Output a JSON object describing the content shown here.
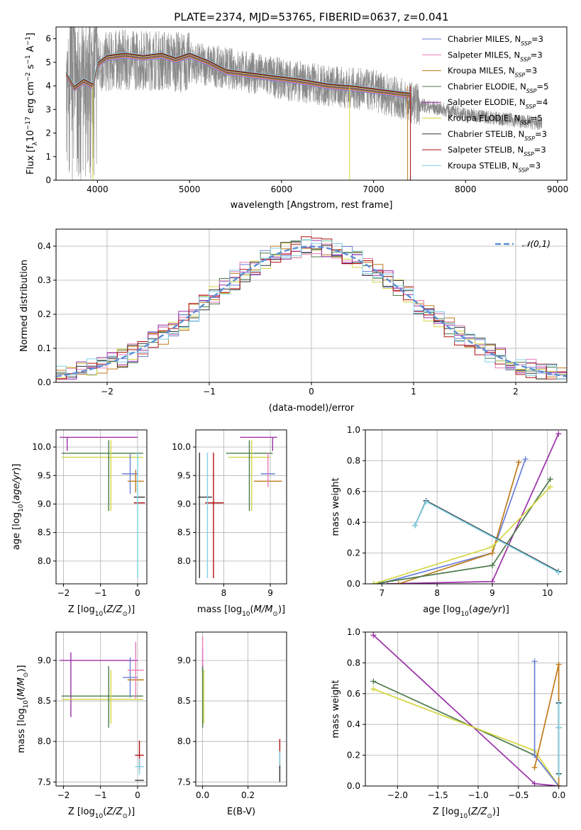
{
  "figure": {
    "title": "PLATE=2374, MJD=53765, FIBERID=0637, z=0.041"
  },
  "models": [
    {
      "name": "Chabrier MILES, N_SSP=3",
      "label_main": "Chabrier MILES, N",
      "label_sub": "SSP",
      "label_end": "=3",
      "color": "#6a7fd6"
    },
    {
      "name": "Salpeter MILES, N_SSP=3",
      "label_main": "Salpeter MILES, N",
      "label_sub": "SSP",
      "label_end": "=3",
      "color": "#e87bb8"
    },
    {
      "name": "Kroupa MILES, N_SSP=3",
      "label_main": "Kroupa MILES, N",
      "label_sub": "SSP",
      "label_end": "=3",
      "color": "#c07a1a"
    },
    {
      "name": "Chabrier ELODIE, N_SSP=5",
      "label_main": "Chabrier ELODIE, N",
      "label_sub": "SSP",
      "label_end": "=5",
      "color": "#4c7a4c"
    },
    {
      "name": "Salpeter ELODIE, N_SSP=4",
      "label_main": "Salpeter ELODIE, N",
      "label_sub": "SSP",
      "label_end": "=4",
      "color": "#9b30a8"
    },
    {
      "name": "Kroupa ELODIE, N_SSP=5",
      "label_main": "Kroupa ELODIE, N",
      "label_sub": "SSP",
      "label_end": "=5",
      "color": "#d4d640"
    },
    {
      "name": "Chabrier STELIB, N_SSP=3",
      "label_main": "Chabrier STELIB, N",
      "label_sub": "SSP",
      "label_end": "=3",
      "color": "#333333"
    },
    {
      "name": "Salpeter STELIB, N_SSP=3",
      "label_main": "Salpeter STELIB, N",
      "label_sub": "SSP",
      "label_end": "=3",
      "color": "#b01010"
    },
    {
      "name": "Kroupa STELIB, N_SSP=3",
      "label_main": "Kroupa STELIB, N",
      "label_sub": "SSP",
      "label_end": "=3",
      "color": "#7ed0e6"
    }
  ],
  "chart_data": [
    {
      "id": "spectrum",
      "type": "line",
      "xlabel": "wavelength [Angstrom, rest frame]",
      "ylabel": "Flux [f_λ 10^-17 erg cm^-2 s^-1 A^-1]",
      "xlim": [
        3550,
        9100
      ],
      "ylim": [
        0,
        6.5
      ],
      "xticks": [
        4000,
        5000,
        6000,
        7000,
        8000,
        9000
      ],
      "yticks": [
        0,
        1,
        2,
        3,
        4,
        5,
        6
      ],
      "grid": false,
      "legend": "top-right",
      "data_series_color": "#888888",
      "data_x_range": [
        3660,
        8830
      ],
      "data_trend": {
        "x": [
          3660,
          3800,
          4000,
          4200,
          4600,
          5000,
          5500,
          6000,
          6500,
          7000,
          7500,
          8000,
          8400,
          8830
        ],
        "y": [
          3.8,
          4.2,
          4.9,
          5.1,
          5.1,
          5.0,
          4.7,
          4.3,
          4.0,
          3.8,
          3.2,
          2.8,
          2.6,
          2.4
        ]
      },
      "model_trend": {
        "x": [
          3660,
          3750,
          3850,
          3950,
          4000,
          4100,
          4300,
          4500,
          4700,
          4850,
          5000,
          5200,
          5400,
          5600,
          5800,
          6000,
          6200,
          6500,
          6800,
          7000,
          7200,
          7400
        ],
        "y": [
          4.5,
          3.9,
          4.2,
          4.0,
          4.9,
          5.2,
          5.3,
          5.2,
          5.3,
          5.1,
          5.3,
          5.0,
          4.6,
          4.5,
          4.4,
          4.3,
          4.2,
          4.0,
          3.9,
          3.8,
          3.7,
          3.6
        ]
      },
      "model_cutoffs": [
        {
          "model": 5,
          "x": 3950
        },
        {
          "model": 5,
          "x": 6740
        },
        {
          "model": 2,
          "x": 7370
        },
        {
          "model": 7,
          "x": 7400
        }
      ]
    },
    {
      "id": "residual-histogram",
      "type": "bar",
      "xlabel": "(data-model)/error",
      "ylabel": "Normed distribution",
      "xlim": [
        -2.5,
        2.5
      ],
      "ylim": [
        0,
        0.45
      ],
      "xticks": [
        -2,
        -1,
        0,
        1,
        2
      ],
      "yticks": [
        0.0,
        0.1,
        0.2,
        0.3,
        0.4
      ],
      "grid": true,
      "bin_width": 0.1,
      "reference": {
        "name": "𝒩(0,1)",
        "color": "#5b8ed6",
        "mean": 0,
        "sigma": 1
      },
      "legend": "top-right"
    },
    {
      "id": "age-vs-Z",
      "type": "scatter",
      "xlabel": "Z [log10(Z/Z⊙)]",
      "ylabel": "age [log10(age/yr)]",
      "xlim": [
        -2.2,
        0.25
      ],
      "ylim": [
        7.6,
        10.3
      ],
      "xticks": [
        -2,
        -1,
        0
      ],
      "yticks": [
        8.0,
        8.5,
        9.0,
        9.5,
        10.0
      ],
      "grid": true,
      "points": [
        {
          "model": 4,
          "x": -1.05,
          "xerr": 1.05,
          "y": 10.17,
          "yerr": 0.0
        },
        {
          "model": 4,
          "x": -1.9,
          "xerr": 0,
          "y": 10.05,
          "yerr": 0.12
        },
        {
          "model": 3,
          "x": -0.95,
          "xerr": 1.1,
          "y": 9.89,
          "yerr": 0.0
        },
        {
          "model": 5,
          "x": -0.95,
          "xerr": 1.1,
          "y": 9.82,
          "yerr": 0.0
        },
        {
          "model": 3,
          "x": -0.78,
          "xerr": 0,
          "y": 9.5,
          "yerr": 0.62
        },
        {
          "model": 5,
          "x": -0.72,
          "xerr": 0,
          "y": 9.5,
          "yerr": 0.62
        },
        {
          "model": 0,
          "x": -0.2,
          "xerr": 0.22,
          "y": 9.53,
          "yerr": 0.35
        },
        {
          "model": 2,
          "x": -0.05,
          "xerr": 0.22,
          "y": 9.4,
          "yerr": 0.2
        },
        {
          "model": 6,
          "x": 0.05,
          "xerr": 0.15,
          "y": 9.12,
          "yerr": 0.0
        },
        {
          "model": 7,
          "x": 0.05,
          "xerr": 0.15,
          "y": 9.02,
          "yerr": 0.0
        },
        {
          "model": 8,
          "x": 0.0,
          "xerr": 0.0,
          "y": 8.8,
          "yerr": 1.1
        }
      ]
    },
    {
      "id": "age-vs-mass",
      "type": "scatter",
      "xlabel": "mass [log10(M/M⊙)]",
      "ylabel": "",
      "xlim": [
        7.4,
        9.35
      ],
      "ylim": [
        7.6,
        10.3
      ],
      "xticks": [
        8,
        9
      ],
      "yticks": [
        8.0,
        8.5,
        9.0,
        9.5,
        10.0
      ],
      "grid": true,
      "points": [
        {
          "model": 4,
          "x": 8.75,
          "xerr": 0.4,
          "y": 10.17,
          "yerr": 0.0
        },
        {
          "model": 4,
          "x": 9.05,
          "xerr": 0,
          "y": 10.05,
          "yerr": 0.12
        },
        {
          "model": 3,
          "x": 8.55,
          "xerr": 0.5,
          "y": 9.89,
          "yerr": 0.0
        },
        {
          "model": 5,
          "x": 8.55,
          "xerr": 0.45,
          "y": 9.82,
          "yerr": 0.0
        },
        {
          "model": 3,
          "x": 8.55,
          "xerr": 0,
          "y": 9.5,
          "yerr": 0.62
        },
        {
          "model": 5,
          "x": 8.6,
          "xerr": 0,
          "y": 9.5,
          "yerr": 0.62
        },
        {
          "model": 0,
          "x": 8.95,
          "xerr": 0.15,
          "y": 9.53,
          "yerr": 0.0
        },
        {
          "model": 2,
          "x": 8.95,
          "xerr": 0.3,
          "y": 9.4,
          "yerr": 0.0
        },
        {
          "model": 1,
          "x": 8.95,
          "xerr": 0,
          "y": 9.6,
          "yerr": 0.3
        },
        {
          "model": 6,
          "x": 7.6,
          "xerr": 0.15,
          "y": 9.12,
          "yerr": 0.0
        },
        {
          "model": 6,
          "x": 7.48,
          "xerr": 0,
          "y": 8.8,
          "yerr": 1.1
        },
        {
          "model": 7,
          "x": 7.8,
          "xerr": 0.2,
          "y": 9.02,
          "yerr": 0.0
        },
        {
          "model": 7,
          "x": 7.78,
          "xerr": 0,
          "y": 8.8,
          "yerr": 1.1
        },
        {
          "model": 8,
          "x": 7.65,
          "xerr": 0,
          "y": 8.8,
          "yerr": 1.1
        }
      ]
    },
    {
      "id": "massweight-vs-age",
      "type": "line",
      "xlabel": "age [log10(age/yr)]",
      "ylabel": "mass weight",
      "xlim": [
        6.7,
        10.35
      ],
      "ylim": [
        0,
        1.0
      ],
      "xticks": [
        7,
        8,
        9,
        10
      ],
      "yticks": [
        0.0,
        0.2,
        0.4,
        0.6,
        0.8,
        1.0
      ],
      "grid": true,
      "series": [
        {
          "model": 4,
          "x": [
            7.1,
            9.0,
            10.2
          ],
          "y": [
            0.0,
            0.015,
            0.975
          ]
        },
        {
          "model": 0,
          "x": [
            6.95,
            9.0,
            9.6
          ],
          "y": [
            0.0,
            0.2,
            0.81
          ]
        },
        {
          "model": 2,
          "x": [
            7.3,
            9.0,
            9.48
          ],
          "y": [
            0.0,
            0.2,
            0.79
          ]
        },
        {
          "model": 3,
          "x": [
            6.85,
            9.0,
            10.05
          ],
          "y": [
            0.0,
            0.12,
            0.68
          ]
        },
        {
          "model": 5,
          "x": [
            6.85,
            9.0,
            10.05
          ],
          "y": [
            0.0,
            0.24,
            0.63
          ]
        },
        {
          "model": 6,
          "x": [
            7.6,
            7.8,
            10.2
          ],
          "y": [
            0.38,
            0.54,
            0.08
          ]
        },
        {
          "model": 8,
          "x": [
            7.6,
            7.8,
            10.2
          ],
          "y": [
            0.38,
            0.535,
            0.075
          ]
        }
      ]
    },
    {
      "id": "mass-vs-Z",
      "type": "scatter",
      "xlabel": "Z [log10(Z/Z⊙)]",
      "ylabel": "mass [log10(M/M⊙)]",
      "xlim": [
        -2.2,
        0.25
      ],
      "ylim": [
        7.45,
        9.35
      ],
      "xticks": [
        -2,
        -1,
        0
      ],
      "yticks": [
        7.5,
        8.0,
        8.5,
        9.0
      ],
      "grid": true,
      "points": [
        {
          "model": 4,
          "x": -1.05,
          "xerr": 1.05,
          "y": 9.0,
          "yerr": 0.0
        },
        {
          "model": 4,
          "x": -1.8,
          "xerr": 0,
          "y": 8.7,
          "yerr": 0.4
        },
        {
          "model": 3,
          "x": -0.95,
          "xerr": 1.1,
          "y": 8.56,
          "yerr": 0.0
        },
        {
          "model": 5,
          "x": -0.95,
          "xerr": 1.1,
          "y": 8.52,
          "yerr": 0.0
        },
        {
          "model": 3,
          "x": -0.78,
          "xerr": 0,
          "y": 8.55,
          "yerr": 0.38
        },
        {
          "model": 5,
          "x": -0.72,
          "xerr": 0,
          "y": 8.55,
          "yerr": 0.33
        },
        {
          "model": 0,
          "x": -0.2,
          "xerr": 0.2,
          "y": 8.79,
          "yerr": 0.25
        },
        {
          "model": 2,
          "x": -0.05,
          "xerr": 0.22,
          "y": 8.76,
          "yerr": 0.0
        },
        {
          "model": 1,
          "x": -0.05,
          "xerr": 0.22,
          "y": 8.88,
          "yerr": 0.35
        },
        {
          "model": 7,
          "x": 0.05,
          "xerr": 0.12,
          "y": 7.83,
          "yerr": 0.18
        },
        {
          "model": 8,
          "x": 0.05,
          "xerr": 0.12,
          "y": 7.69,
          "yerr": 0.1
        },
        {
          "model": 6,
          "x": 0.05,
          "xerr": 0.12,
          "y": 7.52,
          "yerr": 0.0
        }
      ]
    },
    {
      "id": "mass-vs-ebv",
      "type": "scatter",
      "xlabel": "E(B-V)",
      "ylabel": "",
      "xlim": [
        -0.03,
        0.37
      ],
      "ylim": [
        7.45,
        9.35
      ],
      "xticks": [
        0.0,
        0.2
      ],
      "yticks": [
        7.5,
        8.0,
        8.5,
        9.0
      ],
      "grid": true,
      "points": [
        {
          "model": 4,
          "x": 0.0,
          "xerr": 0,
          "y": 9.0,
          "yerr": 0.15
        },
        {
          "model": 1,
          "x": 0.0,
          "xerr": 0,
          "y": 9.1,
          "yerr": 0.2
        },
        {
          "model": 3,
          "x": 0.0,
          "xerr": 0,
          "y": 8.55,
          "yerr": 0.38
        },
        {
          "model": 5,
          "x": 0.005,
          "xerr": 0,
          "y": 8.55,
          "yerr": 0.33
        },
        {
          "model": 7,
          "x": 0.34,
          "xerr": 0,
          "y": 7.85,
          "yerr": 0.18
        },
        {
          "model": 8,
          "x": 0.34,
          "xerr": 0,
          "y": 7.7,
          "yerr": 0.18
        },
        {
          "model": 6,
          "x": 0.34,
          "xerr": 0,
          "y": 7.6,
          "yerr": 0.1
        }
      ]
    },
    {
      "id": "massweight-vs-Z",
      "type": "line",
      "xlabel": "Z [log10(Z/Z⊙)]",
      "ylabel": "mass weight",
      "xlim": [
        -2.4,
        0.1
      ],
      "ylim": [
        0,
        1.0
      ],
      "xticks": [
        -2.0,
        -1.5,
        -1.0,
        -0.5,
        0.0
      ],
      "yticks": [
        0.0,
        0.2,
        0.4,
        0.6,
        0.8,
        1.0
      ],
      "grid": true,
      "series": [
        {
          "model": 4,
          "x": [
            -2.3,
            -0.3,
            0.0
          ],
          "y": [
            0.98,
            0.015,
            0.0
          ]
        },
        {
          "model": 3,
          "x": [
            -2.3,
            -0.3,
            0.0
          ],
          "y": [
            0.68,
            0.2,
            0.0
          ]
        },
        {
          "model": 5,
          "x": [
            -2.3,
            -0.3,
            0.0
          ],
          "y": [
            0.63,
            0.23,
            0.0
          ]
        },
        {
          "model": 0,
          "x": [
            -0.3,
            -0.3,
            0.0
          ],
          "y": [
            0.81,
            0.2,
            0.0
          ]
        },
        {
          "model": 2,
          "x": [
            -0.3,
            0.0,
            0.0
          ],
          "y": [
            0.12,
            0.79,
            0.0
          ]
        },
        {
          "model": 6,
          "x": [
            0.0,
            0.0,
            0.0
          ],
          "y": [
            0.54,
            0.38,
            0.08
          ]
        },
        {
          "model": 8,
          "x": [
            0.0,
            0.0,
            0.0
          ],
          "y": [
            0.535,
            0.38,
            0.075
          ]
        }
      ]
    }
  ]
}
